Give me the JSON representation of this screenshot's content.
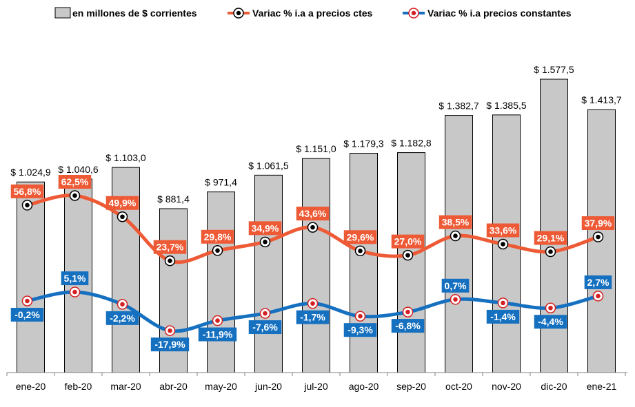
{
  "chart_data": {
    "type": "bar",
    "categories": [
      "ene-20",
      "feb-20",
      "mar-20",
      "abr-20",
      "may-20",
      "jun-20",
      "jul-20",
      "ago-20",
      "sep-20",
      "oct-20",
      "nov-20",
      "dic-20",
      "ene-21"
    ],
    "series": [
      {
        "name": "en millones de $ corrientes",
        "type": "bar",
        "color": "#c8c8c8",
        "values": [
          1024.9,
          1040.6,
          1103.0,
          881.4,
          971.4,
          1061.5,
          1151.0,
          1179.3,
          1182.8,
          1382.7,
          1385.5,
          1577.5,
          1413.7
        ],
        "labels": [
          "$ 1.024,9",
          "$ 1.040,6",
          "$ 1.103,0",
          "$ 881,4",
          "$ 971,4",
          "$ 1.061,5",
          "$ 1.151,0",
          "$ 1.179,3",
          "$ 1.182,8",
          "$ 1.382,7",
          "$ 1.385,5",
          "$ 1.577,5",
          "$ 1.413,7"
        ]
      },
      {
        "name": "Variac % i.a a precios ctes",
        "type": "line",
        "color": "#ee5a35",
        "values": [
          56.8,
          62.5,
          49.9,
          23.7,
          29.8,
          34.9,
          43.6,
          29.6,
          27.0,
          38.5,
          33.6,
          29.1,
          37.9
        ],
        "labels": [
          "56,8%",
          "62,5%",
          "49,9%",
          "23,7%",
          "29,8%",
          "34,9%",
          "43,6%",
          "29,6%",
          "27,0%",
          "38,5%",
          "33,6%",
          "29,1%",
          "37,9%"
        ]
      },
      {
        "name": "Variac % i.a precios constantes",
        "type": "line",
        "color": "#1670c0",
        "values": [
          -0.2,
          5.1,
          -2.2,
          -17.9,
          -11.9,
          -7.6,
          -1.7,
          -9.3,
          -6.8,
          0.7,
          -1.4,
          -4.4,
          2.7
        ],
        "labels": [
          "-0,2%",
          "5,1%",
          "-2,2%",
          "-17,9%",
          "-11,9%",
          "-7,6%",
          "-1,7%",
          "-9,3%",
          "-6,8%",
          "0,7%",
          "-1,4%",
          "-4,4%",
          "2,7%"
        ]
      }
    ],
    "legend_position": "top",
    "grid": false,
    "bar_axis_visible": false,
    "pct_axis_visible": false
  }
}
